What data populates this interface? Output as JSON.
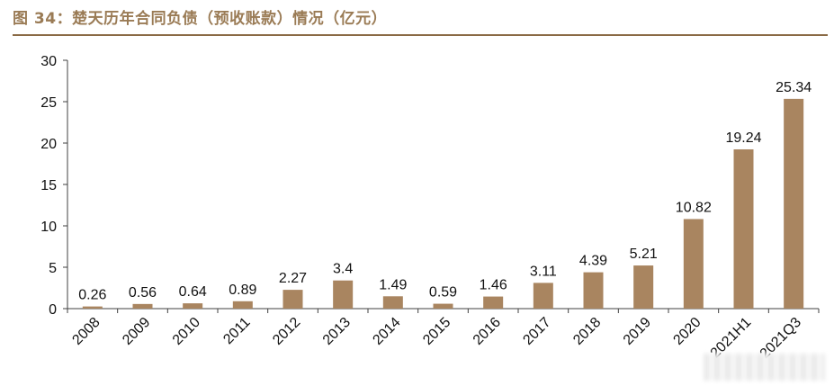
{
  "figure": {
    "title": "图 34：楚天历年合同负债（预收账款）情况（亿元）"
  },
  "colors": {
    "bar": "#a98560",
    "title": "#9a7b55",
    "rule": "#8a6a45",
    "axis": "#404040"
  },
  "chart_data": {
    "type": "bar",
    "title": "楚天历年合同负债（预收账款）情况（亿元）",
    "categories": [
      "2008",
      "2009",
      "2010",
      "2011",
      "2012",
      "2013",
      "2014",
      "2015",
      "2016",
      "2017",
      "2018",
      "2019",
      "2020",
      "2021H1",
      "2021Q3"
    ],
    "values": [
      0.26,
      0.56,
      0.64,
      0.89,
      2.27,
      3.4,
      1.49,
      0.59,
      1.46,
      3.11,
      4.39,
      5.21,
      10.82,
      19.24,
      25.34
    ],
    "value_labels": [
      "0.26",
      "0.56",
      "0.64",
      "0.89",
      "2.27",
      "3.4",
      "1.49",
      "0.59",
      "1.46",
      "3.11",
      "4.39",
      "5.21",
      "10.82",
      "19.24",
      "25.34"
    ],
    "ylim": [
      0,
      30
    ],
    "yticks": [
      0,
      5,
      10,
      15,
      20,
      25,
      30
    ],
    "xlabel": "",
    "ylabel": "",
    "grid": false,
    "legend": "none"
  }
}
